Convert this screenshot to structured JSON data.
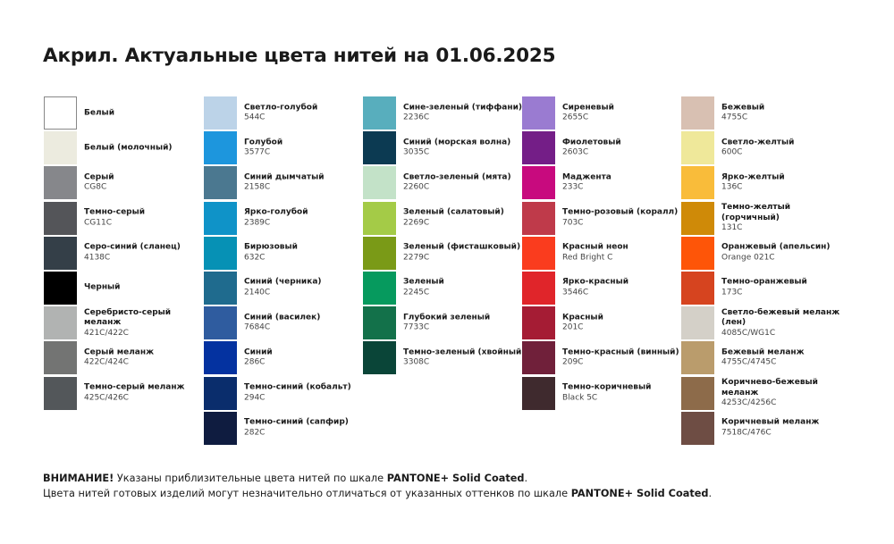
{
  "title": "Акрил. Актуальные цвета нитей на 01.06.2025",
  "columns": [
    [
      {
        "name": "Белый",
        "code": "",
        "color": "#ffffff"
      },
      {
        "name": "Белый (молочный)",
        "code": "",
        "color": "#ecebdf"
      },
      {
        "name": "Серый",
        "code": "CG8C",
        "color": "#86878b"
      },
      {
        "name": "Темно-серый",
        "code": "CG11C",
        "color": "#545559"
      },
      {
        "name": "Серо-синий (сланец)",
        "code": "4138C",
        "color": "#343f48"
      },
      {
        "name": "Черный",
        "code": "",
        "color": "#000000"
      },
      {
        "name": "Серебристо-серый меланж",
        "code": "421C/422C",
        "color": "#b1b3b2"
      },
      {
        "name": "Серый меланж",
        "code": "422C/424C",
        "color": "#737473"
      },
      {
        "name": "Темно-серый меланж",
        "code": "425C/426C",
        "color": "#53575a"
      }
    ],
    [
      {
        "name": "Светло-голубой",
        "code": "544C",
        "color": "#bcd3e8"
      },
      {
        "name": "Голубой",
        "code": "3577C",
        "color": "#1d96dd"
      },
      {
        "name": "Синий дымчатый",
        "code": "2158C",
        "color": "#4b7890"
      },
      {
        "name": "Ярко-голубой",
        "code": "2389C",
        "color": "#0f93c8"
      },
      {
        "name": "Бирюзовый",
        "code": "632C",
        "color": "#0691b5"
      },
      {
        "name": "Синий (черника)",
        "code": "2140C",
        "color": "#1f6b8e"
      },
      {
        "name": "Синий (василек)",
        "code": "7684C",
        "color": "#2f5c9f"
      },
      {
        "name": "Синий",
        "code": "286C",
        "color": "#0432a0"
      },
      {
        "name": "Темно-синий (кобальт)",
        "code": "294C",
        "color": "#0a2d6c"
      },
      {
        "name": "Темно-синий (сапфир)",
        "code": "282C",
        "color": "#0f1c40"
      }
    ],
    [
      {
        "name": "Сине-зеленый (тиффани)",
        "code": "2236C",
        "color": "#58aebd"
      },
      {
        "name": "Синий (морская волна)",
        "code": "3035C",
        "color": "#0c3a52"
      },
      {
        "name": "Светло-зеленый (мята)",
        "code": "2260C",
        "color": "#c3e2c8"
      },
      {
        "name": "Зеленый (салатовый)",
        "code": "2269C",
        "color": "#a4cb47"
      },
      {
        "name": "Зеленый (фисташковый)",
        "code": "2279C",
        "color": "#7a9a17"
      },
      {
        "name": "Зеленый",
        "code": "2245C",
        "color": "#069a5e"
      },
      {
        "name": "Глубокий зеленый",
        "code": "7733C",
        "color": "#13714a"
      },
      {
        "name": "Темно-зеленый (хвойный)",
        "code": "3308C",
        "color": "#0a4538"
      }
    ],
    [
      {
        "name": "Сиреневый",
        "code": "2655C",
        "color": "#9a7bd1"
      },
      {
        "name": "Фиолетовый",
        "code": "2603C",
        "color": "#741e87"
      },
      {
        "name": "Маджента",
        "code": "233C",
        "color": "#c80a7e"
      },
      {
        "name": "Темно-розовый (коралл)",
        "code": "703C",
        "color": "#bf3a4a"
      },
      {
        "name": "Красный неон",
        "code": "Red Bright C",
        "color": "#fa3c1e"
      },
      {
        "name": "Ярко-красный",
        "code": "3546C",
        "color": "#e0252a"
      },
      {
        "name": "Красный",
        "code": "201C",
        "color": "#a51c34"
      },
      {
        "name": "Темно-красный (винный)",
        "code": "209C",
        "color": "#70203a"
      },
      {
        "name": "Темно-коричневый",
        "code": "Black 5C",
        "color": "#3f2a2e"
      }
    ],
    [
      {
        "name": "Бежевый",
        "code": "4755C",
        "color": "#d8c0b2"
      },
      {
        "name": "Светло-желтый",
        "code": "600C",
        "color": "#efe89a"
      },
      {
        "name": "Ярко-желтый",
        "code": "136C",
        "color": "#f9bc3a"
      },
      {
        "name": "Темно-желтый (горчичный)",
        "code": "131C",
        "color": "#cf8a08"
      },
      {
        "name": "Оранжевый (апельсин)",
        "code": "Orange 021C",
        "color": "#fe5508"
      },
      {
        "name": "Темно-оранжевый",
        "code": "173C",
        "color": "#d6441f"
      },
      {
        "name": "Светло-бежевый меланж (лен)",
        "code": "4085C/WG1C",
        "color": "#d4d0c8"
      },
      {
        "name": "Бежевый меланж",
        "code": "4755C/4745C",
        "color": "#ba9c6c"
      },
      {
        "name": "Коричнево-бежевый меланж",
        "code": "4253C/4256C",
        "color": "#8d6b4a"
      },
      {
        "name": "Коричневый меланж",
        "code": "7518C/476C",
        "color": "#6e4d44"
      }
    ]
  ],
  "notice": {
    "line1_bold": "ВНИМАНИЕ!",
    "line1_text": " Указаны приблизительные цвета нитей по шкале ",
    "line1_scale": "PANTONE+ Solid Coated",
    "line1_end": ".",
    "line2_text": "Цвета нитей готовых изделий могут незначительно отличаться от указанных оттенков по шкале ",
    "line2_scale": "PANTONE+ Solid Coated",
    "line2_end": "."
  }
}
